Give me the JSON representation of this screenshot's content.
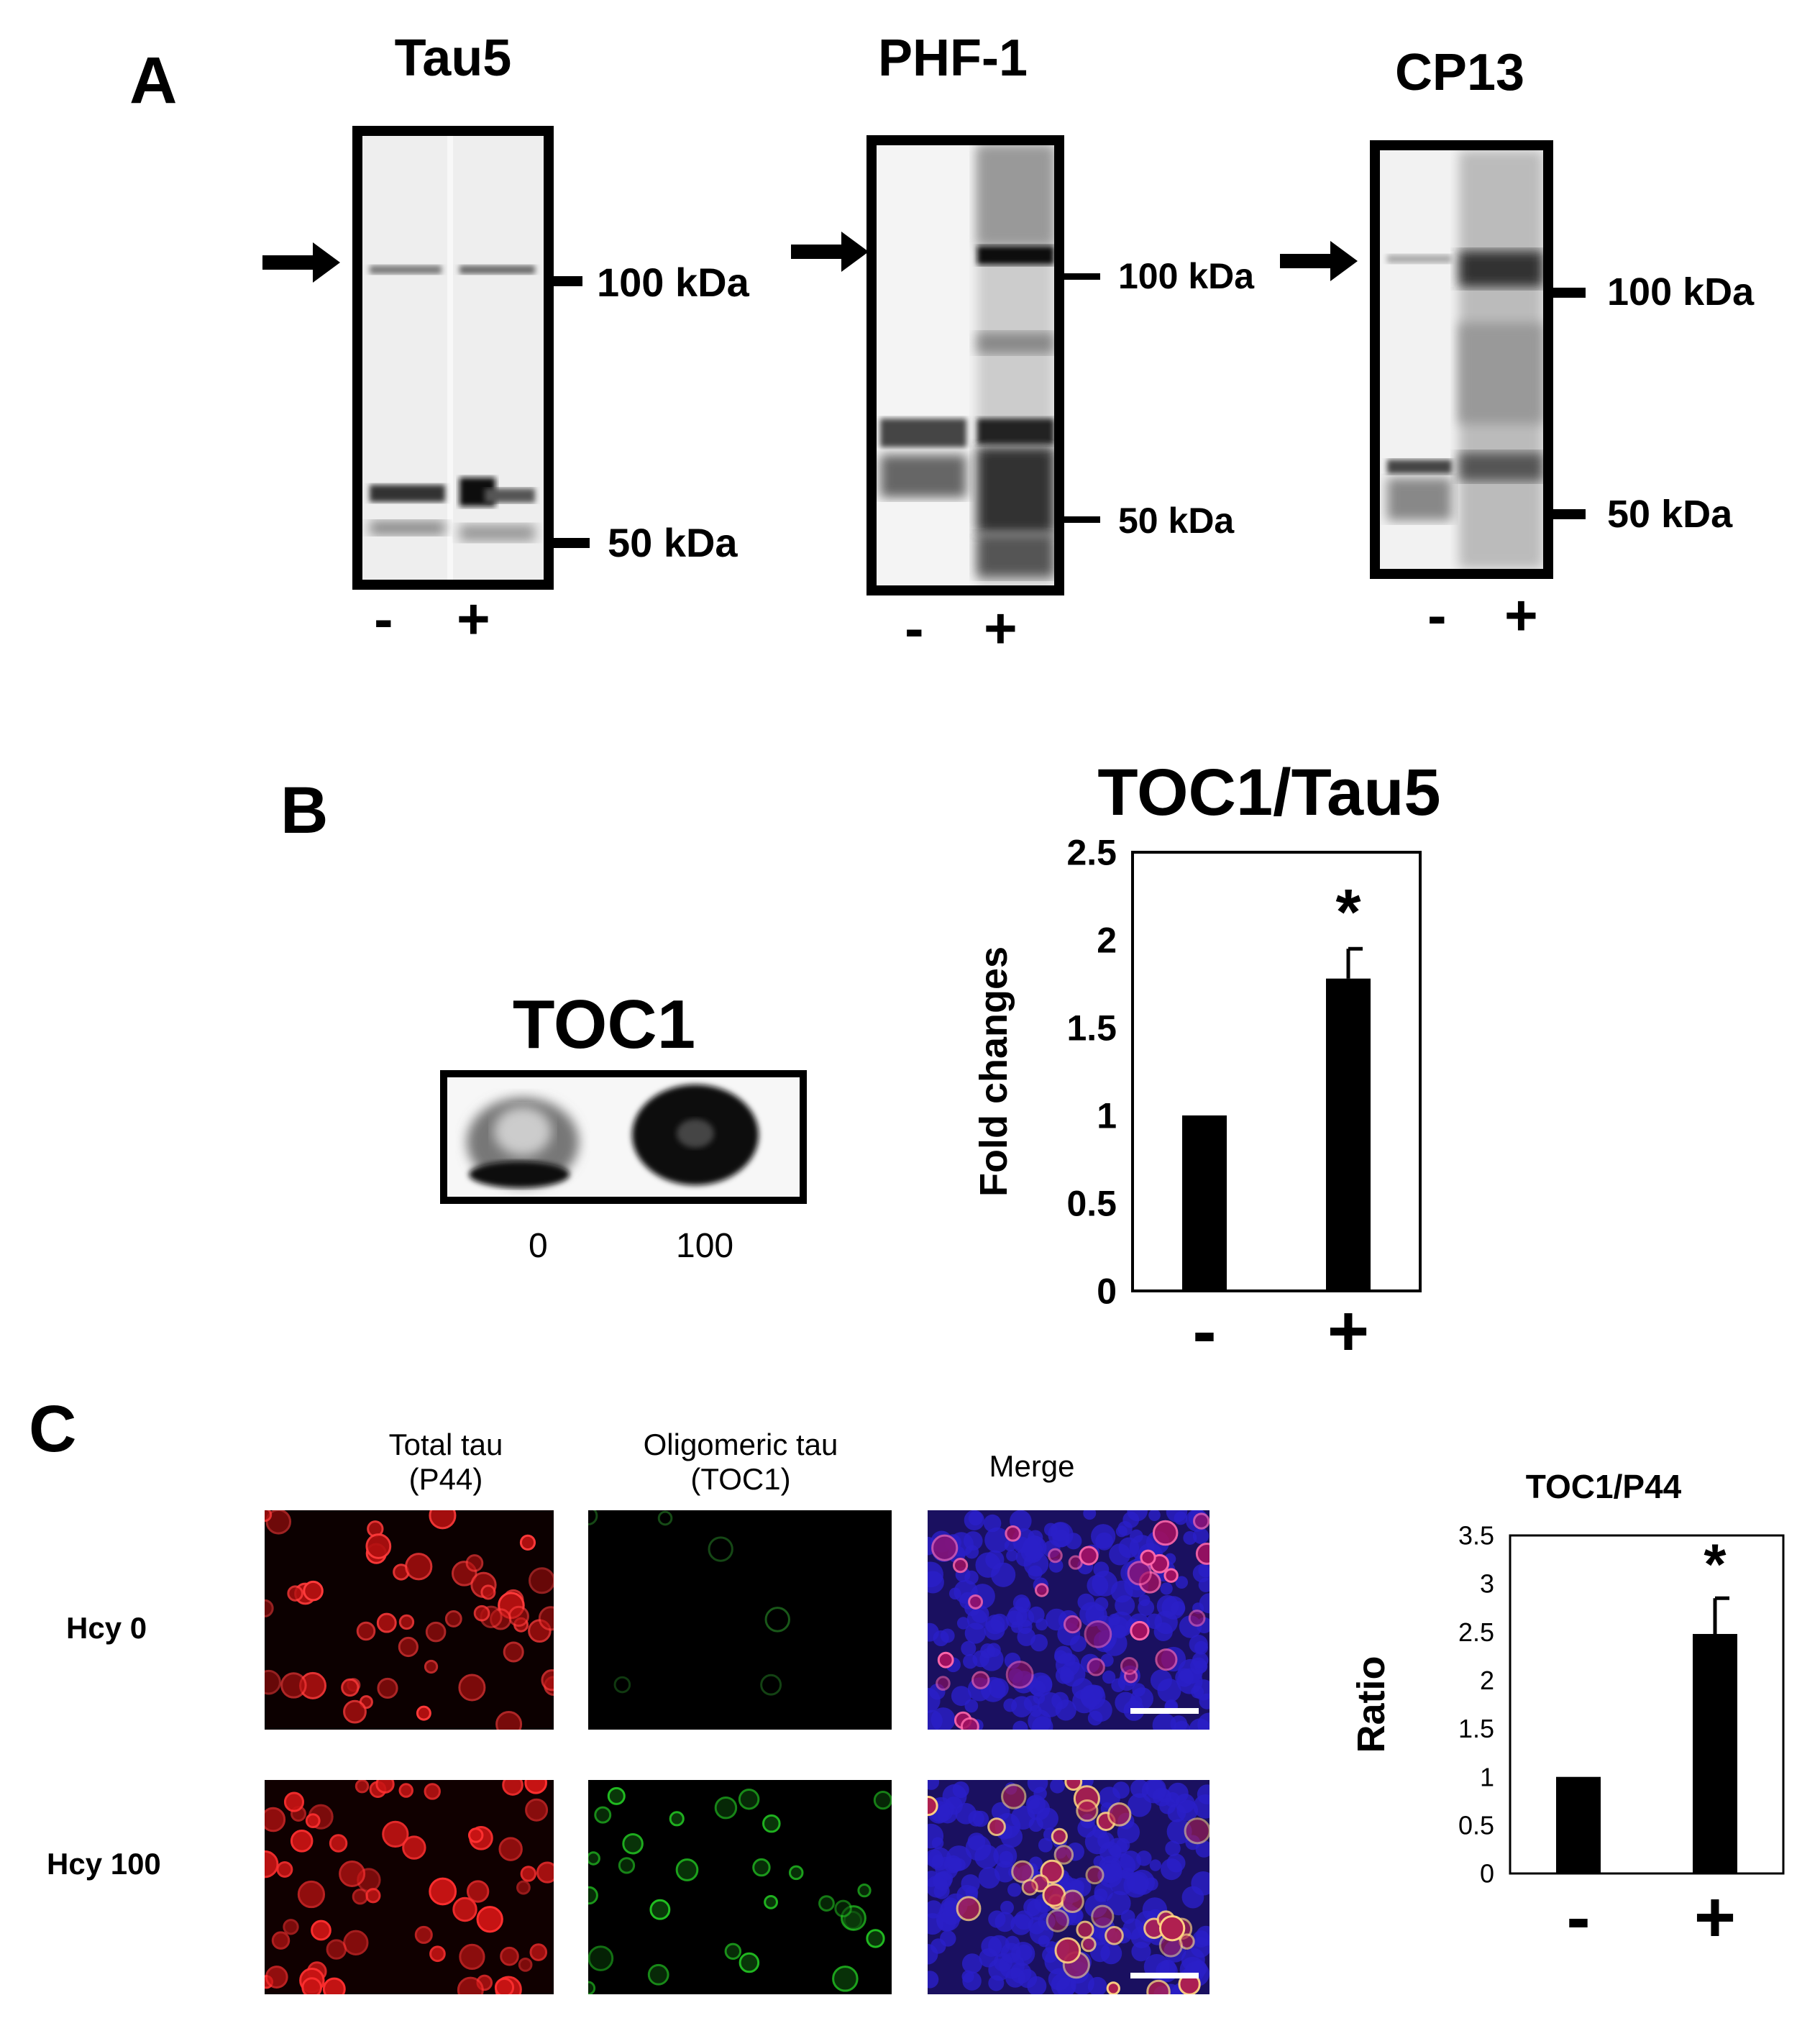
{
  "panel_A": {
    "letter": "A",
    "blots": [
      {
        "title": "Tau5",
        "mw_high": "100 kDa",
        "mw_low": "50 kDa",
        "lanes": [
          "-",
          "+"
        ]
      },
      {
        "title": "PHF-1",
        "mw_high": "100 kDa",
        "mw_low": "50 kDa",
        "lanes": [
          "-",
          "+"
        ]
      },
      {
        "title": "CP13",
        "mw_high": "100 kDa",
        "mw_low": "50 kDa",
        "lanes": [
          "-",
          "+"
        ]
      }
    ]
  },
  "panel_B": {
    "letter": "B",
    "dot_blot": {
      "title": "TOC1",
      "labels": [
        "0",
        "100"
      ]
    },
    "chart_title": "TOC1/Tau5"
  },
  "panel_C": {
    "letter": "C",
    "columns": [
      {
        "line1": "Total tau",
        "line2": "(P44)"
      },
      {
        "line1": "Oligomeric tau",
        "line2": "(TOC1)"
      },
      {
        "line1": "Merge",
        "line2": ""
      }
    ],
    "rows": [
      "Hcy 0",
      "Hcy 100"
    ],
    "chart_title": "TOC1/P44"
  },
  "chart_data": [
    {
      "type": "bar",
      "title": "TOC1/Tau5",
      "ylabel": "Fold changes",
      "categories": [
        "-",
        "+"
      ],
      "values": [
        1.0,
        1.78
      ],
      "errors": [
        0,
        0.17
      ],
      "significance": [
        "",
        "*"
      ],
      "ylim": [
        0,
        2.5
      ],
      "yticks": [
        "0",
        "0.5",
        "1",
        "1.5",
        "2",
        "2.5"
      ],
      "bar_color": "#000000"
    },
    {
      "type": "bar",
      "title": "TOC1/P44",
      "ylabel": "Ratio",
      "categories": [
        "-",
        "+"
      ],
      "values": [
        1.0,
        2.48
      ],
      "errors": [
        0,
        0.37
      ],
      "significance": [
        "",
        "*"
      ],
      "ylim": [
        0,
        3.5
      ],
      "yticks": [
        "0",
        "0.5",
        "1",
        "1.5",
        "2",
        "2.5",
        "3",
        "3.5"
      ],
      "bar_color": "#000000"
    }
  ]
}
